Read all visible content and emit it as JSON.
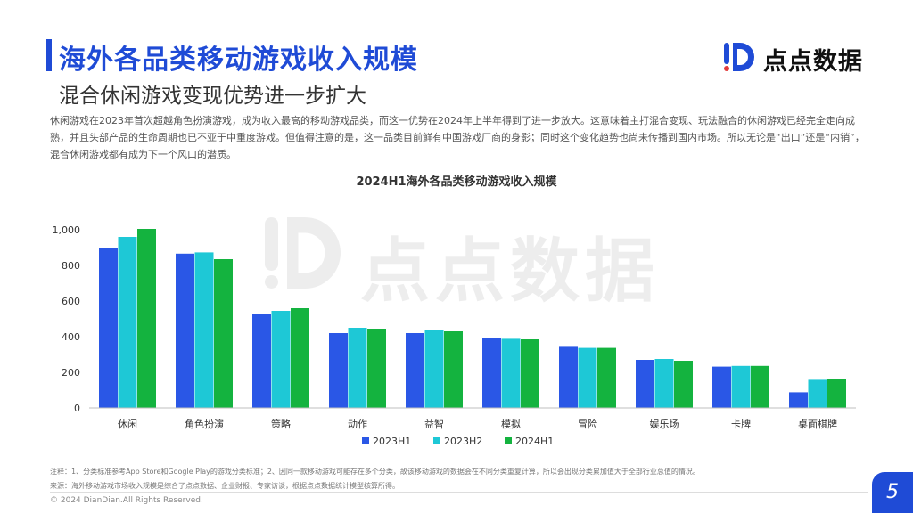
{
  "header": {
    "title": "海外各品类移动游戏收入规模",
    "subtitle": "混合休闲游戏变现优势进一步扩大"
  },
  "logo": {
    "text": "点点数据"
  },
  "description": "休闲游戏在2023年首次超越角色扮演游戏，成为收入最高的移动游戏品类，而这一优势在2024年上半年得到了进一步放大。这意味着主打混合变现、玩法融合的休闲游戏已经完全走向成熟，并且头部产品的生命周期也已不亚于中重度游戏。但值得注意的是，这一品类目前鲜有中国游戏厂商的身影；同时这个变化趋势也尚未传播到国内市场。所以无论是“出口”还是“内销”，混合休闲游戏都有成为下一个风口的潜质。",
  "chart_data": {
    "type": "bar",
    "title": "2024H1海外各品类移动游戏收入规模",
    "categories": [
      "休闲",
      "角色扮演",
      "策略",
      "动作",
      "益智",
      "模拟",
      "冒险",
      "娱乐场",
      "卡牌",
      "桌面棋牌"
    ],
    "series": [
      {
        "name": "2023H1",
        "color": "#2a57e6",
        "values": [
          897,
          866,
          530,
          420,
          420,
          390,
          343,
          270,
          232,
          88
        ]
      },
      {
        "name": "2023H2",
        "color": "#1ec8d6",
        "values": [
          960,
          873,
          545,
          450,
          435,
          388,
          337,
          275,
          236,
          158
        ]
      },
      {
        "name": "2024H1",
        "color": "#14b33f",
        "values": [
          1005,
          835,
          560,
          445,
          430,
          385,
          337,
          265,
          236,
          165
        ]
      }
    ],
    "yticks": [
      "0",
      "200",
      "400",
      "600",
      "800",
      "1,000"
    ],
    "ylim": [
      0,
      1000
    ],
    "legend_position": "bottom",
    "grid": false
  },
  "notes": {
    "line1": "注释：1、分类标准参考App Store和Google Play的游戏分类标准；2、因同一款移动游戏可能存在多个分类，故该移动游戏的数据会在不同分类重复计算，所以会出现分类累加值大于全部行业总值的情况。",
    "line2": "来源：海外移动游戏市场收入规模是综合了点点数据、企业财报、专家访谈，根据点点数据统计模型核算所得。"
  },
  "footer": {
    "copyright": "© 2024 DianDian.All Rights Reserved.",
    "page_number": "5"
  }
}
